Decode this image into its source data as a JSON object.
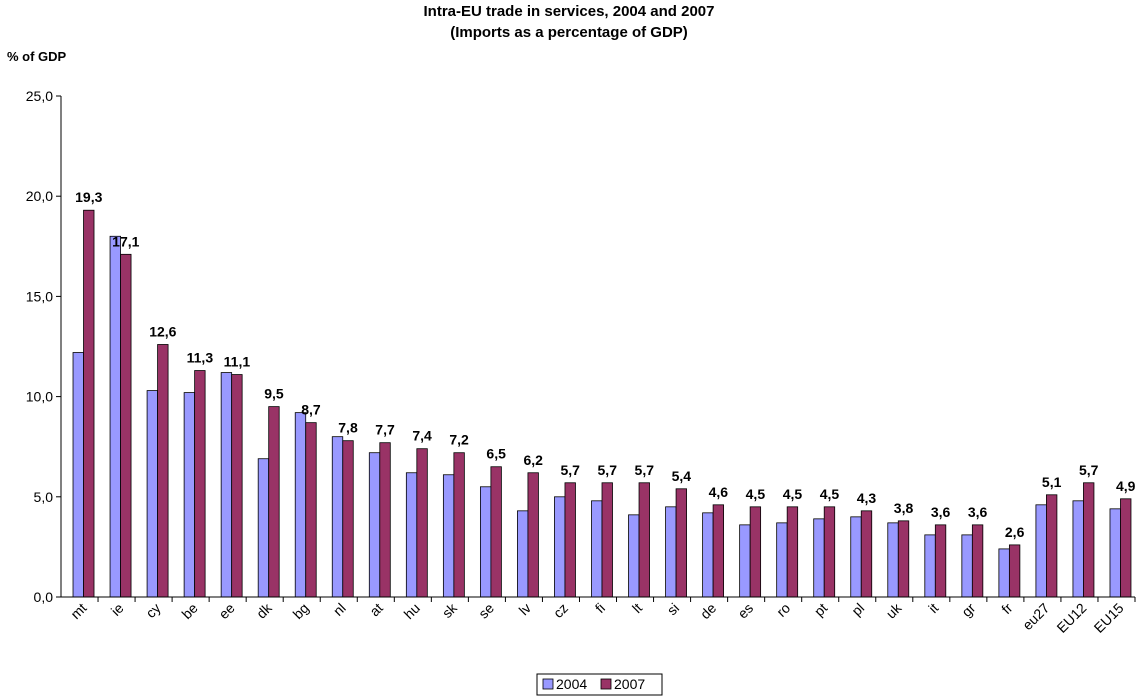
{
  "chart_data": {
    "type": "bar",
    "title": "Intra-EU trade in services, 2004 and 2007",
    "subtitle": "(Imports as a percentage of GDP)",
    "ylabel": "% of GDP",
    "xlabel": "",
    "ylim": [
      0,
      25
    ],
    "yticks": [
      "0,0",
      "5,0",
      "10,0",
      "15,0",
      "20,0",
      "25,0"
    ],
    "ytick_values": [
      0,
      5,
      10,
      15,
      20,
      25
    ],
    "grid": false,
    "legend_position": "bottom-center",
    "categories": [
      "mt",
      "ie",
      "cy",
      "be",
      "ee",
      "dk",
      "bg",
      "nl",
      "at",
      "hu",
      "sk",
      "se",
      "lv",
      "cz",
      "fi",
      "lt",
      "si",
      "de",
      "es",
      "ro",
      "pt",
      "pl",
      "uk",
      "it",
      "gr",
      "fr",
      "eu27",
      "EU12",
      "EU15"
    ],
    "series": [
      {
        "name": "2004",
        "color": "#9999ff",
        "values": [
          12.2,
          18.0,
          10.3,
          10.2,
          11.2,
          6.9,
          9.2,
          8.0,
          7.2,
          6.2,
          6.1,
          5.5,
          4.3,
          5.0,
          4.8,
          4.1,
          4.5,
          4.2,
          3.6,
          3.7,
          3.9,
          4.0,
          3.7,
          3.1,
          3.1,
          2.4,
          4.6,
          4.8,
          4.4
        ]
      },
      {
        "name": "2007",
        "color": "#993366",
        "values": [
          19.3,
          17.1,
          12.6,
          11.3,
          11.1,
          9.5,
          8.7,
          7.8,
          7.7,
          7.4,
          7.2,
          6.5,
          6.2,
          5.7,
          5.7,
          5.7,
          5.4,
          4.6,
          4.5,
          4.5,
          4.5,
          4.3,
          3.8,
          3.6,
          3.6,
          2.6,
          5.1,
          5.7,
          4.9
        ],
        "labels": [
          "19,3",
          "17,1",
          "12,6",
          "11,3",
          "11,1",
          "9,5",
          "8,7",
          "7,8",
          "7,7",
          "7,4",
          "7,2",
          "6,5",
          "6,2",
          "5,7",
          "5,7",
          "5,7",
          "5,4",
          "4,6",
          "4,5",
          "4,5",
          "4,5",
          "4,3",
          "3,8",
          "3,6",
          "3,6",
          "2,6",
          "5,1",
          "5,7",
          "4,9"
        ]
      }
    ]
  }
}
